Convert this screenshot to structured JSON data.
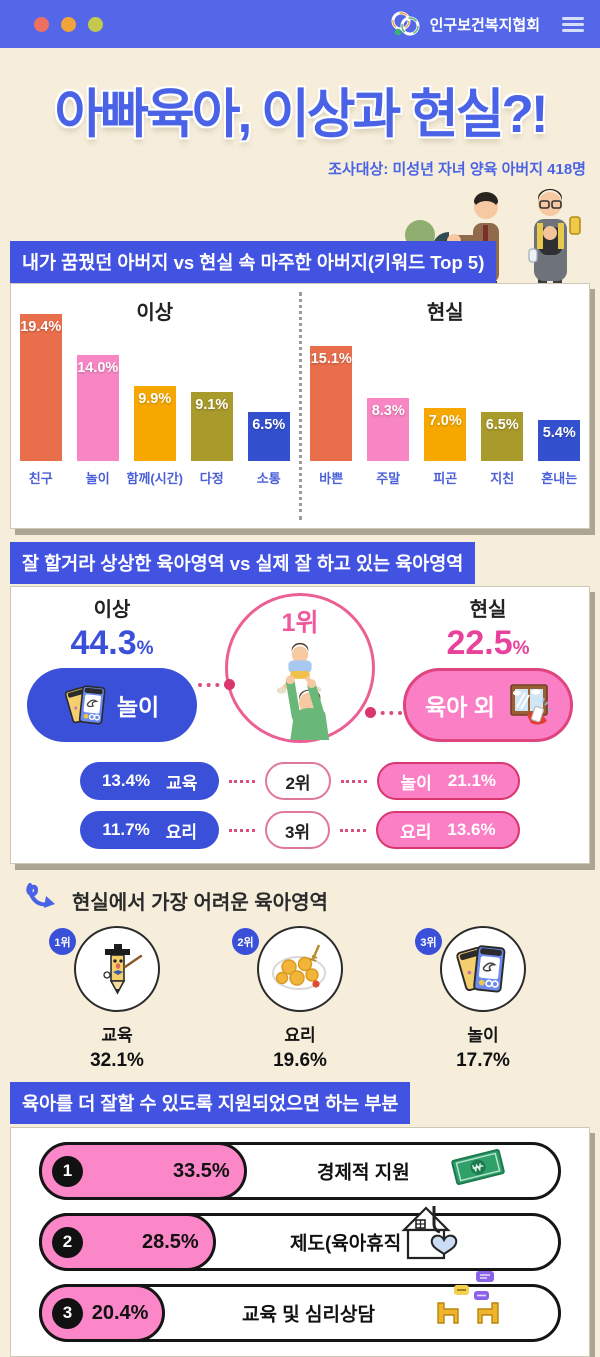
{
  "topbar": {
    "brand": "인구보건복지협회"
  },
  "title": "아빠육아, 이상과 현실?!",
  "subtitle": "조사대상: 미성년 자녀 양육 아버지 418명",
  "colors": {
    "topbar_blue": "#5467e8",
    "banner_blue": "#4253e2",
    "accent_blue": "#3a50d9",
    "accent_pink": "#e8429b",
    "pill_pink": "#fb7fc5",
    "background_cream": "#f6eedb",
    "bar_palette": [
      "#e96e4c",
      "#f886c4",
      "#f6a801",
      "#a99a2c",
      "#3350cf"
    ],
    "dot_colors": [
      "#ee7061",
      "#f0a43a",
      "#c2c94e"
    ]
  },
  "icons": {
    "hamburger": "menu",
    "org_logo": "interlocked-rings",
    "squiggle_arrow": "curly-arrow"
  },
  "chart_data": [
    {
      "id": "dream-vs-real-father-keywords",
      "type": "bar",
      "title": "내가 꿈꿨던 아버지 vs 현실 속 마주한 아버지(키워드 Top 5)",
      "unit": "%",
      "ylim": [
        0,
        20
      ],
      "grid": false,
      "groups": [
        {
          "label": "이상",
          "categories": [
            "친구",
            "놀이",
            "함께(시간)",
            "다정",
            "소통"
          ],
          "values": [
            19.4,
            14.0,
            9.9,
            9.1,
            6.5
          ],
          "value_labels": [
            "19.4%",
            "14.0%",
            "9.9%",
            "9.1%",
            "6.5%"
          ]
        },
        {
          "label": "현실",
          "categories": [
            "바쁜",
            "주말",
            "피곤",
            "지친",
            "혼내는"
          ],
          "values": [
            15.1,
            8.3,
            7.0,
            6.5,
            5.4
          ],
          "value_labels": [
            "15.1%",
            "8.3%",
            "7.0%",
            "6.5%",
            "5.4%"
          ]
        }
      ]
    },
    {
      "id": "expected-vs-actual-parenting-areas",
      "type": "table",
      "title": "잘 할거라 상상한 육아영역 vs 실제 잘 하고 있는 육아영역",
      "unit": "%",
      "columns": {
        "ideal": "이상",
        "real": "현실"
      },
      "rows": [
        {
          "rank": "1위",
          "ideal_label": "놀이",
          "ideal_value": 44.3,
          "ideal_value_label": "44.3",
          "real_label": "육아 외",
          "real_value": 22.5,
          "real_value_label": "22.5"
        },
        {
          "rank": "2위",
          "ideal_label": "교육",
          "ideal_value": 13.4,
          "ideal_value_label": "13.4%",
          "real_label": "놀이",
          "real_value": 21.1,
          "real_value_label": "21.1%"
        },
        {
          "rank": "3위",
          "ideal_label": "요리",
          "ideal_value": 11.7,
          "ideal_value_label": "11.7%",
          "real_label": "요리",
          "real_value": 13.6,
          "real_value_label": "13.6%"
        }
      ]
    },
    {
      "id": "hardest-parenting-areas",
      "type": "bar",
      "title": "현실에서 가장 어려운 육아영역",
      "unit": "%",
      "ranks": [
        "1위",
        "2위",
        "3위"
      ],
      "categories": [
        "교육",
        "요리",
        "놀이"
      ],
      "values": [
        32.1,
        19.6,
        17.7
      ],
      "value_labels": [
        "32.1%",
        "19.6%",
        "17.7%"
      ]
    },
    {
      "id": "desired-support",
      "type": "bar",
      "title": "육아를 더 잘할 수 있도록 지원되었으면 하는 부분",
      "unit": "%",
      "ranks": [
        "1",
        "2",
        "3"
      ],
      "categories": [
        "경제적 지원",
        "제도(육아휴직 등)",
        "교육 및 심리상담"
      ],
      "values": [
        33.5,
        28.5,
        20.4
      ],
      "value_labels": [
        "33.5%",
        "28.5%",
        "20.4%"
      ]
    }
  ]
}
